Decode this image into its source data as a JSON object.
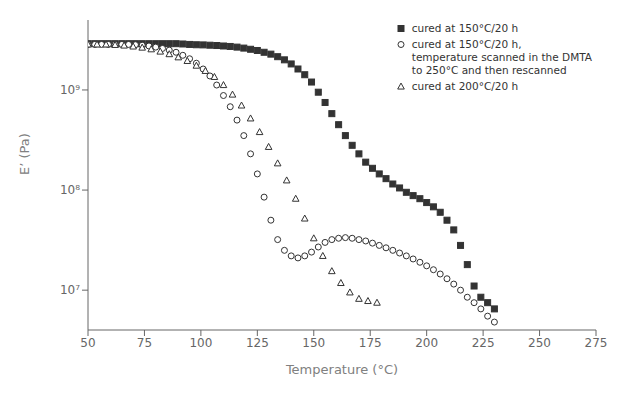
{
  "chart_data": {
    "type": "scatter",
    "title": "",
    "xlabel": "Temperature (°C)",
    "ylabel": "E’ (Pa)",
    "log": "y",
    "grid": false,
    "legend": "upper right",
    "xlim": [
      50,
      275
    ],
    "xticks": [
      50,
      75,
      100,
      125,
      150,
      175,
      200,
      225,
      250,
      275
    ],
    "ylim": [
      4000000.0,
      5000000000.0
    ],
    "yticks": [
      {
        "value": 10000000.0,
        "label": "10⁷"
      },
      {
        "value": 100000000.0,
        "label": "10⁸"
      },
      {
        "value": 1000000000.0,
        "label": "10⁹"
      }
    ],
    "series": [
      {
        "name": "cured at 150°C/20 h",
        "color": "#333333",
        "marker": "square",
        "x": [
          50,
          53,
          56,
          59,
          62,
          65,
          68,
          71,
          74,
          77,
          80,
          83,
          86,
          89,
          92,
          95,
          98,
          101,
          104,
          107,
          110,
          113,
          116,
          119,
          122,
          125,
          128,
          131,
          134,
          137,
          140,
          143,
          146,
          149,
          152,
          155,
          158,
          161,
          164,
          167,
          170,
          173,
          176,
          179,
          182,
          185,
          188,
          191,
          194,
          197,
          200,
          203,
          206,
          209,
          212,
          215,
          218,
          221,
          224,
          227,
          230,
          233,
          236,
          239,
          242,
          245,
          248
        ],
        "values": [
          2900000000.0,
          2900000000.0,
          2900000000.0,
          2900000000.0,
          2900000000.0,
          2900000000.0,
          2900000000.0,
          2900000000.0,
          2900000000.0,
          2900000000.0,
          2900000000.0,
          2900000000.0,
          2900000000.0,
          2900000000.0,
          2880000000.0,
          2850000000.0,
          2830000000.0,
          2820000000.0,
          2800000000.0,
          2780000000.0,
          2750000000.0,
          2720000000.0,
          2680000000.0,
          2620000000.0,
          2550000000.0,
          2480000000.0,
          2380000000.0,
          2280000000.0,
          2150000000.0,
          2000000000.0,
          1820000000.0,
          1620000000.0,
          1420000000.0,
          1200000000.0,
          950000000.0,
          750000000.0,
          580000000.0,
          450000000.0,
          350000000.0,
          280000000.0,
          230000000.0,
          190000000.0,
          165000000.0,
          145000000.0,
          130000000.0,
          115000000.0,
          105000000.0,
          95000000.0,
          88000000.0,
          82000000.0,
          75000000.0,
          68000000.0,
          60000000.0,
          50000000.0,
          40000000.0,
          28000000.0,
          18000000.0,
          11000000.0,
          8500000.0,
          7500000.0,
          6500000.0,
          null,
          null,
          null,
          null,
          null,
          null
        ]
      },
      {
        "name": "cured at 150°C/20 h,\ntemperature scanned in the DMTA\nto 250°C and then rescanned",
        "color": "#333333",
        "marker": "circle",
        "x": [
          50,
          53,
          56,
          59,
          62,
          65,
          68,
          71,
          74,
          77,
          80,
          83,
          86,
          89,
          92,
          95,
          98,
          101,
          104,
          107,
          110,
          113,
          116,
          119,
          122,
          125,
          128,
          131,
          134,
          137,
          140,
          143,
          146,
          149,
          152,
          155,
          158,
          161,
          164,
          167,
          170,
          173,
          176,
          179,
          182,
          185,
          188,
          191,
          194,
          197,
          200,
          203,
          206,
          209,
          212,
          215,
          218,
          221,
          224,
          227,
          230,
          233,
          236,
          239,
          242,
          245,
          248,
          251
        ],
        "values": [
          2850000000.0,
          2850000000.0,
          2850000000.0,
          2850000000.0,
          2850000000.0,
          2850000000.0,
          2850000000.0,
          2830000000.0,
          2800000000.0,
          2750000000.0,
          2680000000.0,
          2600000000.0,
          2500000000.0,
          2380000000.0,
          2220000000.0,
          2050000000.0,
          1850000000.0,
          1620000000.0,
          1380000000.0,
          1120000000.0,
          880000000.0,
          680000000.0,
          500000000.0,
          350000000.0,
          230000000.0,
          145000000.0,
          85000000.0,
          50000000.0,
          32000000.0,
          25000000.0,
          22000000.0,
          21000000.0,
          22000000.0,
          24000000.0,
          27000000.0,
          30000000.0,
          32000000.0,
          33000000.0,
          33500000.0,
          33000000.0,
          32000000.0,
          31000000.0,
          29500000.0,
          28000000.0,
          26500000.0,
          25000000.0,
          23500000.0,
          22000000.0,
          20500000.0,
          19000000.0,
          17500000.0,
          16000000.0,
          14500000.0,
          13000000.0,
          11500000.0,
          10000000.0,
          8500000.0,
          7500000.0,
          6500000.0,
          5500000.0,
          4800000.0,
          null,
          null,
          null,
          null,
          null,
          null,
          null
        ]
      },
      {
        "name": "cured at 200°C/20 h",
        "color": "#333333",
        "marker": "triangle",
        "x": [
          50,
          54,
          58,
          62,
          66,
          70,
          74,
          78,
          82,
          86,
          90,
          94,
          98,
          102,
          106,
          110,
          114,
          118,
          122,
          126,
          130,
          134,
          138,
          142,
          146,
          150,
          154,
          158,
          162,
          166,
          170,
          174,
          178,
          182,
          186,
          190,
          194,
          198,
          202,
          206,
          210,
          214,
          218,
          222,
          226,
          230,
          234,
          238,
          242,
          246,
          250,
          254
        ],
        "values": [
          2850000000.0,
          2850000000.0,
          2850000000.0,
          2820000000.0,
          2780000000.0,
          2720000000.0,
          2650000000.0,
          2550000000.0,
          2420000000.0,
          2280000000.0,
          2120000000.0,
          1950000000.0,
          1750000000.0,
          1550000000.0,
          1350000000.0,
          1120000000.0,
          900000000.0,
          700000000.0,
          520000000.0,
          380000000.0,
          270000000.0,
          185000000.0,
          125000000.0,
          82000000.0,
          52000000.0,
          33000000.0,
          22000000.0,
          15500000.0,
          11800000.0,
          9500000.0,
          8200000.0,
          7800000.0,
          7500000.0,
          null,
          null,
          null,
          null,
          null,
          null,
          null,
          null,
          null,
          null,
          null,
          null,
          null,
          null,
          null,
          null,
          null,
          null,
          null
        ]
      }
    ]
  }
}
